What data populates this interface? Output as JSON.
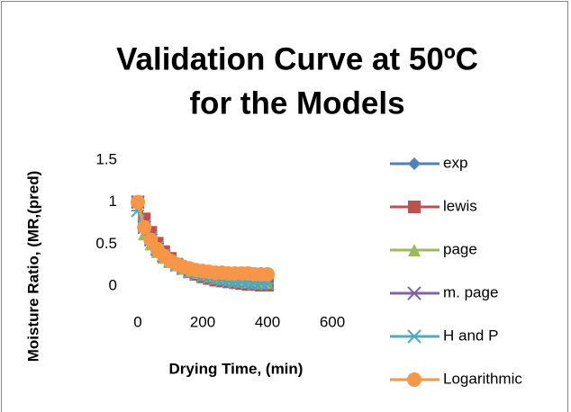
{
  "chart_data": {
    "type": "line",
    "title": [
      "Validation Curve at 50ºC",
      "for the Models"
    ],
    "x_label": "Drying Time, (min)",
    "y_label": "Moisture Ratio, (MR,(pred)",
    "x": [
      0,
      20,
      40,
      60,
      80,
      100,
      120,
      140,
      160,
      180,
      200,
      220,
      240,
      260,
      280,
      300,
      320,
      340,
      360,
      380,
      400
    ],
    "series": [
      {
        "name": "exp",
        "color": "#4f81bd",
        "marker": "diamond",
        "values": [
          1,
          0.75,
          0.58,
          0.46,
          0.37,
          0.3,
          0.25,
          0.21,
          0.18,
          0.15,
          0.13,
          0.11,
          0.1,
          0.08,
          0.07,
          0.06,
          0.05,
          0.05,
          0.04,
          0.04,
          0.03
        ]
      },
      {
        "name": "lewis",
        "color": "#c0504d",
        "marker": "square",
        "values": [
          1,
          0.8,
          0.64,
          0.51,
          0.41,
          0.33,
          0.26,
          0.21,
          0.17,
          0.14,
          0.11,
          0.09,
          0.07,
          0.06,
          0.05,
          0.04,
          0.03,
          0.02,
          0.02,
          0.01,
          0.01
        ]
      },
      {
        "name": "page",
        "color": "#9bbb59",
        "marker": "triangle",
        "values": [
          1,
          0.62,
          0.5,
          0.41,
          0.34,
          0.29,
          0.25,
          0.21,
          0.18,
          0.16,
          0.14,
          0.12,
          0.1,
          0.09,
          0.08,
          0.07,
          0.06,
          0.05,
          0.05,
          0.04,
          0.04
        ]
      },
      {
        "name": "m. page",
        "color": "#8064a2",
        "marker": "x",
        "values": [
          1,
          0.7,
          0.55,
          0.44,
          0.36,
          0.3,
          0.25,
          0.21,
          0.18,
          0.15,
          0.13,
          0.11,
          0.1,
          0.08,
          0.07,
          0.06,
          0.06,
          0.05,
          0.04,
          0.04,
          0.03
        ]
      },
      {
        "name": "H and P",
        "color": "#4bacc6",
        "marker": "star",
        "values": [
          0.9,
          0.72,
          0.57,
          0.46,
          0.37,
          0.3,
          0.25,
          0.21,
          0.17,
          0.14,
          0.12,
          0.1,
          0.09,
          0.07,
          0.06,
          0.05,
          0.05,
          0.04,
          0.03,
          0.03,
          0.03
        ]
      },
      {
        "name": "Logarithmic",
        "color": "#f79646",
        "marker": "circle",
        "values": [
          1,
          0.7,
          0.55,
          0.44,
          0.36,
          0.3,
          0.26,
          0.23,
          0.21,
          0.19,
          0.18,
          0.17,
          0.16,
          0.16,
          0.15,
          0.15,
          0.15,
          0.15,
          0.14,
          0.14,
          0.14
        ]
      }
    ],
    "xlim": [
      0,
      600
    ],
    "xticks": [
      0,
      200,
      400,
      600
    ],
    "ylim": [
      0,
      1.5
    ],
    "yticks": [
      0,
      0.5,
      1,
      1.5
    ],
    "grid": false,
    "legend": "right"
  }
}
